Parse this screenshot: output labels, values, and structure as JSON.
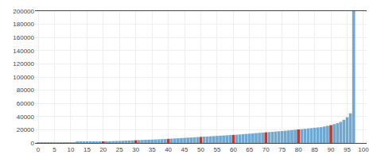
{
  "chart_data": {
    "type": "bar",
    "x": [
      0,
      1,
      2,
      3,
      4,
      5,
      6,
      7,
      8,
      9,
      10,
      11,
      12,
      13,
      14,
      15,
      16,
      17,
      18,
      19,
      20,
      21,
      22,
      23,
      24,
      25,
      26,
      27,
      28,
      29,
      30,
      31,
      32,
      33,
      34,
      35,
      36,
      37,
      38,
      39,
      40,
      41,
      42,
      43,
      44,
      45,
      46,
      47,
      48,
      49,
      50,
      51,
      52,
      53,
      54,
      55,
      56,
      57,
      58,
      59,
      60,
      61,
      62,
      63,
      64,
      65,
      66,
      67,
      68,
      69,
      70,
      71,
      72,
      73,
      74,
      75,
      76,
      77,
      78,
      79,
      80,
      81,
      82,
      83,
      84,
      85,
      86,
      87,
      88,
      89,
      90,
      91,
      92,
      93,
      94,
      95,
      96,
      97
    ],
    "values": [
      100,
      200,
      300,
      400,
      500,
      600,
      700,
      800,
      900,
      1000,
      1100,
      1200,
      1300,
      1400,
      1500,
      1600,
      1700,
      1800,
      1900,
      2000,
      2100,
      2300,
      2500,
      2700,
      2900,
      3100,
      3300,
      3500,
      3700,
      3900,
      4100,
      4300,
      4500,
      4700,
      4900,
      5100,
      5300,
      5500,
      5700,
      5900,
      6200,
      6500,
      6800,
      7100,
      7400,
      7700,
      8000,
      8300,
      8600,
      8900,
      9200,
      9500,
      9800,
      10100,
      10400,
      10700,
      11000,
      11300,
      11600,
      11900,
      12200,
      12500,
      12900,
      13300,
      13700,
      14100,
      14500,
      14900,
      15300,
      15700,
      16100,
      16500,
      16900,
      17300,
      17700,
      18100,
      18500,
      19000,
      19500,
      20000,
      20500,
      21000,
      21500,
      22000,
      22500,
      23000,
      23500,
      24000,
      25000,
      26000,
      27000,
      28500,
      30000,
      32000,
      35000,
      39000,
      45000,
      200000
    ],
    "colors": [
      "#6fa8d0",
      "#6fa8d0",
      "#6fa8d0",
      "#6fa8d0",
      "#6fa8d0",
      "#6fa8d0",
      "#6fa8d0",
      "#6fa8d0",
      "#6fa8d0",
      "#6fa8d0",
      "#6fa8d0",
      "#6fa8d0",
      "#6fa8d0",
      "#6fa8d0",
      "#6fa8d0",
      "#6fa8d0",
      "#6fa8d0",
      "#6fa8d0",
      "#6fa8d0",
      "#6fa8d0",
      "#c0392b",
      "#6fa8d0",
      "#6fa8d0",
      "#6fa8d0",
      "#6fa8d0",
      "#6fa8d0",
      "#6fa8d0",
      "#6fa8d0",
      "#6fa8d0",
      "#6fa8d0",
      "#c0392b",
      "#6fa8d0",
      "#6fa8d0",
      "#6fa8d0",
      "#6fa8d0",
      "#6fa8d0",
      "#6fa8d0",
      "#6fa8d0",
      "#6fa8d0",
      "#6fa8d0",
      "#c0392b",
      "#6fa8d0",
      "#6fa8d0",
      "#6fa8d0",
      "#6fa8d0",
      "#6fa8d0",
      "#6fa8d0",
      "#6fa8d0",
      "#6fa8d0",
      "#6fa8d0",
      "#c0392b",
      "#6fa8d0",
      "#6fa8d0",
      "#6fa8d0",
      "#6fa8d0",
      "#6fa8d0",
      "#6fa8d0",
      "#6fa8d0",
      "#6fa8d0",
      "#6fa8d0",
      "#c0392b",
      "#6fa8d0",
      "#6fa8d0",
      "#6fa8d0",
      "#6fa8d0",
      "#6fa8d0",
      "#6fa8d0",
      "#6fa8d0",
      "#6fa8d0",
      "#6fa8d0",
      "#c0392b",
      "#6fa8d0",
      "#6fa8d0",
      "#6fa8d0",
      "#6fa8d0",
      "#6fa8d0",
      "#6fa8d0",
      "#6fa8d0",
      "#6fa8d0",
      "#6fa8d0",
      "#c0392b",
      "#6fa8d0",
      "#6fa8d0",
      "#6fa8d0",
      "#6fa8d0",
      "#6fa8d0",
      "#6fa8d0",
      "#6fa8d0",
      "#6fa8d0",
      "#6fa8d0",
      "#c0392b",
      "#6fa8d0",
      "#6fa8d0",
      "#6fa8d0",
      "#6fa8d0",
      "#6fa8d0",
      "#6fa8d0",
      "#6fa8d0"
    ],
    "xlim": [
      -1,
      101
    ],
    "ylim": [
      0,
      200000
    ],
    "xticks": [
      0,
      5,
      10,
      15,
      20,
      25,
      30,
      35,
      40,
      45,
      50,
      55,
      60,
      65,
      70,
      75,
      80,
      85,
      90,
      95,
      100
    ],
    "yticks": [
      0,
      20000,
      40000,
      60000,
      80000,
      100000,
      120000,
      140000,
      160000,
      180000,
      200000
    ],
    "grid": true
  }
}
